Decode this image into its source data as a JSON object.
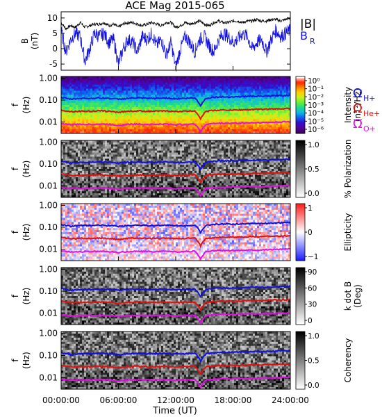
{
  "chart_data": [
    {
      "type": "line",
      "title": "ACE Mag 2015-065",
      "ylabel": "B",
      "yunit": "(nT)",
      "ylim": [
        -7,
        12
      ],
      "yticks": [
        -5,
        0,
        5,
        10
      ],
      "xlim": [
        0,
        24
      ],
      "series": [
        {
          "name": "|B|",
          "color": "#000000",
          "x": [
            0,
            0.5,
            1,
            1.5,
            2,
            2.5,
            3,
            3.5,
            4,
            4.5,
            5,
            5.5,
            6,
            6.5,
            7,
            7.5,
            8,
            8.5,
            9,
            9.5,
            10,
            10.5,
            11,
            11.5,
            12,
            12.5,
            13,
            13.5,
            14,
            14.5,
            15,
            15.5,
            16,
            16.5,
            17,
            17.5,
            18,
            18.5,
            19,
            19.5,
            20,
            20.5,
            21,
            21.5,
            22,
            22.5,
            23,
            23.5,
            24
          ],
          "y": [
            8.5,
            6.5,
            7.5,
            7,
            8.5,
            7,
            7.5,
            8,
            8,
            8.5,
            7.5,
            8,
            7,
            8,
            8.5,
            8.5,
            8,
            7.5,
            8,
            8.5,
            8,
            7.5,
            8.5,
            8.5,
            7,
            7.5,
            8.5,
            8,
            8.5,
            9,
            8,
            7.5,
            8.5,
            9,
            8.5,
            8.5,
            9,
            9,
            8.5,
            9,
            9,
            9.5,
            9,
            9,
            9.5,
            9.5,
            9,
            9.5,
            10
          ]
        },
        {
          "name": "B",
          "subscript": "R",
          "color": "#1010e0",
          "x": [
            0,
            0.5,
            1,
            1.5,
            2,
            2.5,
            3,
            3.5,
            4,
            4.5,
            5,
            5.5,
            6,
            6.5,
            7,
            7.5,
            8,
            8.5,
            9,
            9.5,
            10,
            10.5,
            11,
            11.5,
            12,
            12.5,
            13,
            13.5,
            14,
            14.5,
            15,
            15.5,
            16,
            16.5,
            17,
            17.5,
            18,
            18.5,
            19,
            19.5,
            20,
            20.5,
            21,
            21.5,
            22,
            22.5,
            23,
            23.5,
            24
          ],
          "y": [
            6,
            -1,
            3,
            5,
            4,
            -4,
            0,
            5,
            4,
            5,
            2,
            3,
            -5,
            0,
            3,
            2,
            -1,
            4,
            3,
            5,
            1,
            3,
            -2,
            2,
            -6,
            0,
            4,
            2,
            -1,
            3,
            4,
            1,
            -1,
            3,
            5,
            4,
            2,
            3,
            5,
            4,
            0,
            2,
            3,
            -1,
            3,
            6,
            4,
            5,
            6
          ]
        }
      ]
    },
    {
      "type": "heatmap",
      "quantity": "Intensity",
      "ylabel": "f",
      "yunit": "(Hz)",
      "yscale": "log",
      "ylim": [
        0.003,
        1.2
      ],
      "yticks": [
        "1.00",
        "0.10",
        "0.01"
      ],
      "colorbar_label": "Intensity",
      "colorbar_unit": "(nT²/Hz)",
      "colorbar_ticks": [
        "10⁰",
        "10⁻¹",
        "10⁻²",
        "10⁻³",
        "10⁻⁴",
        "10⁻⁵",
        "10⁻⁶"
      ],
      "colormap": [
        "#3a0060",
        "#5500a0",
        "#3010d0",
        "#1060f0",
        "#10b8e8",
        "#20d890",
        "#60f040",
        "#c8f020",
        "#ffd000",
        "#ff8000",
        "#ff2000",
        "#ffffff"
      ],
      "legend": [
        {
          "symbol": "Ω",
          "sub": "H+",
          "color": "#1010e0"
        },
        {
          "symbol": "Ω",
          "sub": "He+",
          "color": "#e01010"
        },
        {
          "symbol": "Ω",
          "sub": "O+",
          "color": "#e010e0"
        }
      ]
    },
    {
      "type": "heatmap",
      "quantity": "% Polarization",
      "ylabel": "f",
      "yunit": "(Hz)",
      "yscale": "log",
      "yticks": [
        "1.00",
        "0.10",
        "0.01"
      ],
      "colorbar_label": "% Polarization",
      "colorbar_ticks": [
        "1.0",
        "0.5",
        "0.0"
      ],
      "colormap": [
        "#ffffff",
        "#000000"
      ]
    },
    {
      "type": "heatmap",
      "quantity": "Ellipticity",
      "ylabel": "f",
      "yunit": "(Hz)",
      "yscale": "log",
      "yticks": [
        "1.00",
        "0.10",
        "0.01"
      ],
      "colorbar_label": "Ellipticity",
      "colorbar_ticks": [
        "1",
        "0",
        "−1"
      ],
      "colormap": [
        "#2020ff",
        "#ffffff",
        "#ff2020"
      ]
    },
    {
      "type": "heatmap",
      "quantity": "k dot B",
      "ylabel": "f",
      "yunit": "(Hz)",
      "yscale": "log",
      "yticks": [
        "1.00",
        "0.10",
        "0.01"
      ],
      "colorbar_label": "k dot B",
      "colorbar_unit": "(Deg)",
      "colorbar_ticks": [
        "90",
        "60",
        "30",
        "0"
      ],
      "colormap": [
        "#ffffff",
        "#000000"
      ]
    },
    {
      "type": "heatmap",
      "quantity": "Coherency",
      "ylabel": "f",
      "yunit": "(Hz)",
      "yscale": "log",
      "yticks": [
        "1.00",
        "0.10",
        "0.01"
      ],
      "colorbar_label": "Coherency",
      "colorbar_ticks": [
        "1.0",
        "0.5",
        "0.0"
      ],
      "colormap": [
        "#ffffff",
        "#000000"
      ]
    }
  ],
  "gyrofrequency_lines": {
    "x_hours": [
      0,
      1,
      2,
      3,
      4,
      5,
      6,
      7,
      8,
      9,
      10,
      11,
      12,
      13,
      14,
      14.6,
      15.2,
      16,
      17,
      18,
      19,
      20,
      21,
      22,
      23,
      24
    ],
    "H+": [
      0.13,
      0.11,
      0.12,
      0.12,
      0.125,
      0.12,
      0.11,
      0.12,
      0.125,
      0.12,
      0.12,
      0.125,
      0.115,
      0.12,
      0.125,
      0.055,
      0.12,
      0.135,
      0.14,
      0.14,
      0.145,
      0.15,
      0.15,
      0.155,
      0.16,
      0.165
    ],
    "He+": [
      0.035,
      0.03,
      0.031,
      0.031,
      0.032,
      0.031,
      0.028,
      0.031,
      0.032,
      0.031,
      0.031,
      0.032,
      0.03,
      0.031,
      0.032,
      0.014,
      0.031,
      0.034,
      0.035,
      0.035,
      0.036,
      0.037,
      0.038,
      0.039,
      0.04,
      0.041
    ],
    "O+": [
      0.0085,
      0.0075,
      0.0078,
      0.0078,
      0.008,
      0.0078,
      0.007,
      0.0078,
      0.008,
      0.0078,
      0.0078,
      0.008,
      0.0075,
      0.0078,
      0.008,
      0.0035,
      0.0078,
      0.0085,
      0.0088,
      0.0088,
      0.009,
      0.0092,
      0.0094,
      0.0096,
      0.01,
      0.0102
    ]
  },
  "xaxis": {
    "label": "Time (UT)",
    "ticks": [
      "00:00:00",
      "06:00:00",
      "12:00:00",
      "18:00:00",
      "24:00:00"
    ],
    "tick_hours": [
      0,
      6,
      12,
      18,
      24
    ]
  }
}
